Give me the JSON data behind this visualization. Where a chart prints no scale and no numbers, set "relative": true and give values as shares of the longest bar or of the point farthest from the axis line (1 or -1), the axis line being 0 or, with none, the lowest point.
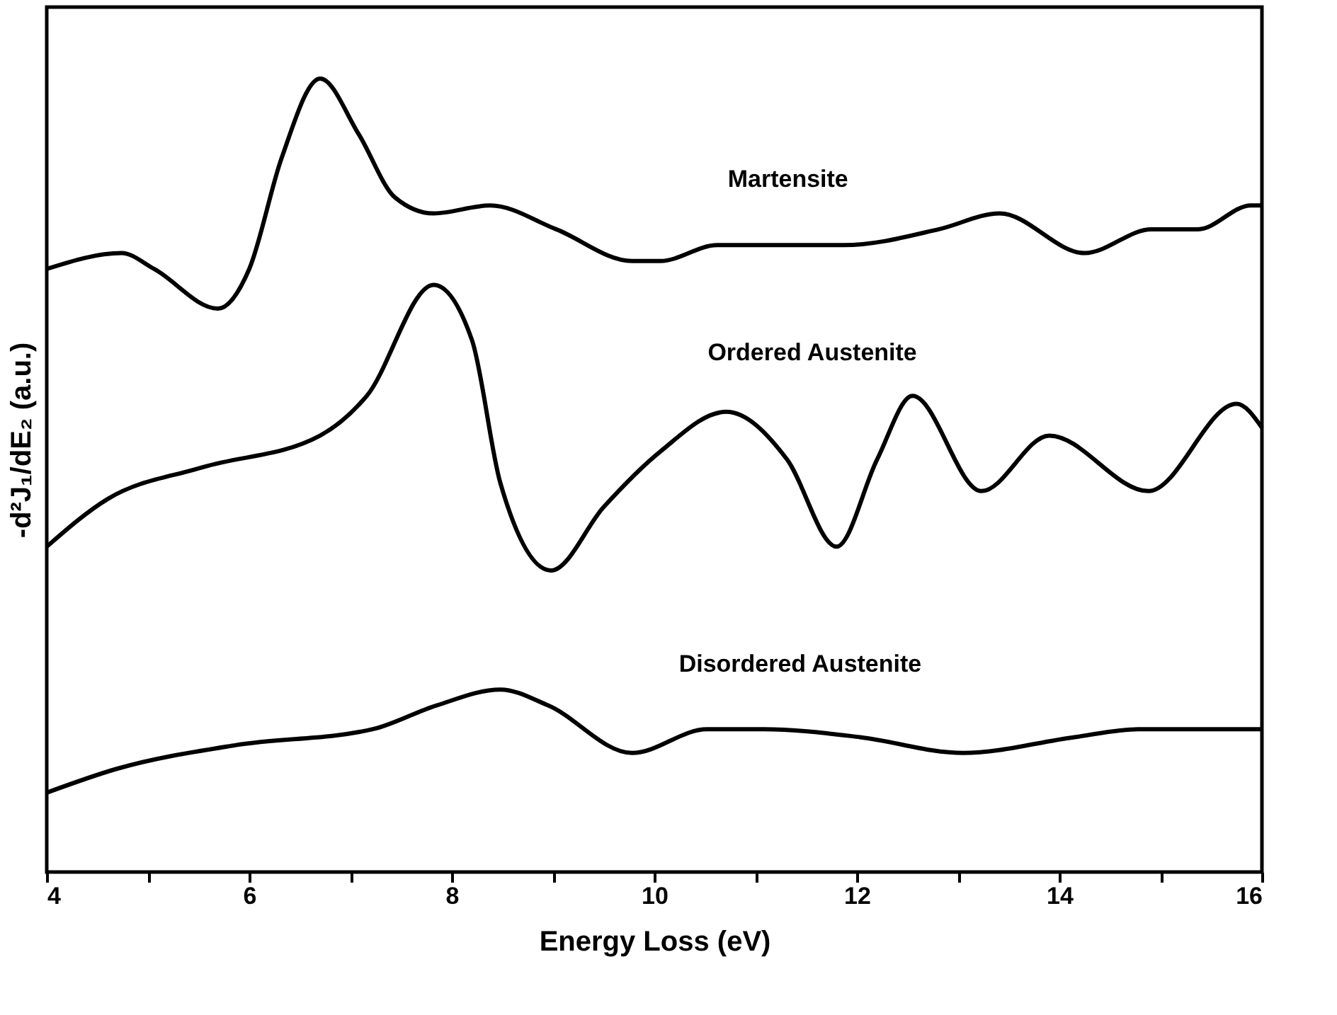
{
  "chart_data": {
    "type": "line",
    "relative": true,
    "xlabel": "Energy Loss (eV)",
    "ylabel": "-d²J₁/dE₂ (a.u.)",
    "xlim": [
      4,
      16
    ],
    "xticks": [
      4,
      {
        "value": 5,
        "label": null
      },
      6,
      {
        "value": 7,
        "label": null
      },
      8,
      {
        "value": 9,
        "label": null
      },
      10,
      {
        "value": 11,
        "label": null
      },
      12,
      {
        "value": 13,
        "label": null
      },
      14,
      {
        "value": 15,
        "label": null
      },
      16
    ],
    "series": [
      {
        "name": "Martensite",
        "color": "#000000",
        "x": [
          4.0,
          4.74,
          5.06,
          5.69,
          6.0,
          6.32,
          6.7,
          7.08,
          7.44,
          7.82,
          8.38,
          9.03,
          9.78,
          10.06,
          10.62,
          11.87,
          12.81,
          13.41,
          14.25,
          14.91,
          15.37,
          15.89,
          16.0
        ],
        "values": [
          0.76,
          0.78,
          0.76,
          0.71,
          0.76,
          0.9,
          1.0,
          0.93,
          0.85,
          0.83,
          0.84,
          0.81,
          0.77,
          0.77,
          0.79,
          0.79,
          0.81,
          0.83,
          0.78,
          0.81,
          0.81,
          0.84,
          0.84
        ]
      },
      {
        "name": "Ordered Austenite",
        "color": "#000000",
        "x": [
          4.0,
          4.6,
          5.54,
          6.7,
          7.16,
          7.82,
          8.2,
          8.48,
          8.98,
          9.5,
          10.06,
          10.71,
          11.31,
          11.8,
          12.2,
          12.55,
          13.23,
          13.9,
          14.88,
          15.75,
          16.0
        ],
        "values": [
          0.41,
          0.47,
          0.51,
          0.55,
          0.6,
          0.74,
          0.67,
          0.49,
          0.38,
          0.46,
          0.53,
          0.58,
          0.52,
          0.41,
          0.52,
          0.6,
          0.48,
          0.55,
          0.48,
          0.59,
          0.56
        ]
      },
      {
        "name": "Disordered Austenite",
        "color": "#000000",
        "x": [
          4.0,
          4.69,
          5.87,
          7.22,
          7.85,
          8.48,
          8.95,
          9.78,
          10.52,
          11.08,
          12.03,
          13.05,
          14.15,
          14.78,
          16.0
        ],
        "values": [
          0.1,
          0.13,
          0.16,
          0.18,
          0.21,
          0.23,
          0.21,
          0.15,
          0.18,
          0.18,
          0.17,
          0.15,
          0.17,
          0.18,
          0.18
        ]
      }
    ]
  }
}
